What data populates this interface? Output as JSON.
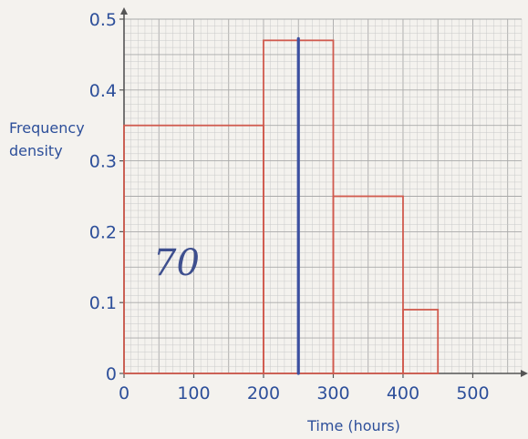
{
  "chart_data": {
    "type": "histogram",
    "title": "",
    "xlabel": "Time (hours)",
    "ylabel_lines": [
      "Frequency",
      "density"
    ],
    "xlim": [
      0,
      570
    ],
    "ylim": [
      0,
      0.5
    ],
    "x_ticks": [
      {
        "value": 0,
        "label": "0"
      },
      {
        "value": 100,
        "label": "100"
      },
      {
        "value": 200,
        "label": "200"
      },
      {
        "value": 300,
        "label": "300"
      },
      {
        "value": 400,
        "label": "400"
      },
      {
        "value": 500,
        "label": "500"
      }
    ],
    "y_ticks": [
      {
        "value": 0,
        "label": "0"
      },
      {
        "value": 0.1,
        "label": "0.1"
      },
      {
        "value": 0.2,
        "label": "0.2"
      },
      {
        "value": 0.3,
        "label": "0.3"
      },
      {
        "value": 0.4,
        "label": "0.4"
      },
      {
        "value": 0.5,
        "label": "0.5"
      }
    ],
    "bars": [
      {
        "x0": 0,
        "x1": 200,
        "frequency_density": 0.35
      },
      {
        "x0": 200,
        "x1": 300,
        "frequency_density": 0.47
      },
      {
        "x0": 300,
        "x1": 400,
        "frequency_density": 0.25
      },
      {
        "x0": 400,
        "x1": 450,
        "frequency_density": 0.09
      }
    ],
    "vertical_marker": {
      "x": 250,
      "y": 0.47
    },
    "handwritten_note": "70",
    "grid": true,
    "colors": {
      "bars": "#d05a4e",
      "marker": "#3b4fa0",
      "text": "#2d4f9a",
      "grid_minor": "#c9c9c9",
      "grid_major": "#a9a9a9",
      "axis": "#555555"
    }
  }
}
